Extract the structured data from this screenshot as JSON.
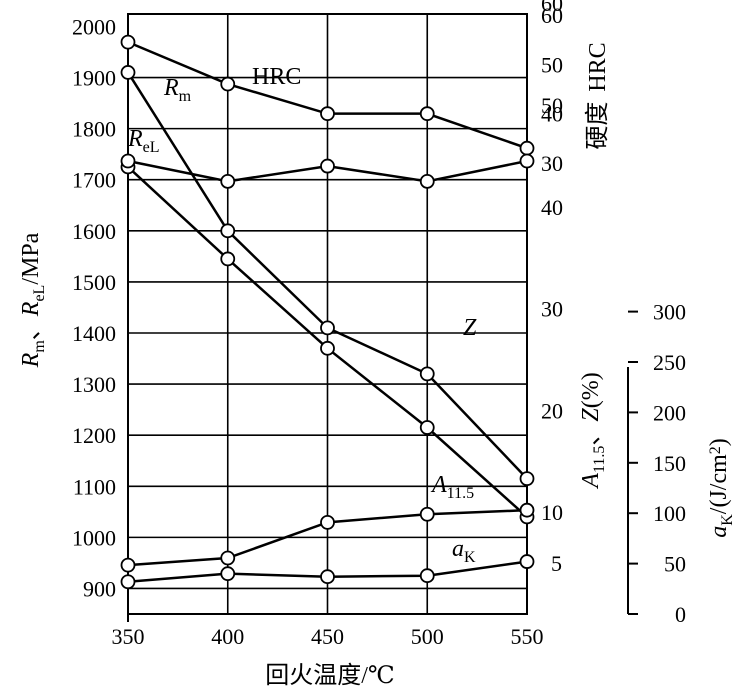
{
  "chart_data": {
    "type": "line",
    "x": [
      350,
      400,
      450,
      500,
      550
    ],
    "xticks": [
      "350",
      "400",
      "450",
      "500",
      "550"
    ],
    "xlabel": "回火温度/℃",
    "xlim": [
      350,
      550
    ],
    "grid": true,
    "axes": {
      "left": {
        "label_parts": [
          "R",
          "m",
          "、",
          "R",
          "eL",
          "/MPa"
        ],
        "range": [
          850,
          2000
        ],
        "ticks": [
          "900",
          "1000",
          "1100",
          "1200",
          "1300",
          "1400",
          "1500",
          "1600",
          "1700",
          "1800",
          "1900",
          "2000"
        ]
      },
      "hrc": {
        "label_parts": [
          "硬度",
          "HRC"
        ],
        "range": [
          25,
          60
        ],
        "ticks": [
          "30",
          "40",
          "50",
          "60"
        ]
      },
      "az": {
        "label_parts": [
          "A",
          "11.5",
          "、",
          "Z",
          "(%)"
        ],
        "range": [
          0,
          70
        ],
        "ticks": [
          "5",
          "10",
          "20",
          "30",
          "40",
          "50",
          "60"
        ]
      },
      "ak": {
        "label_parts": [
          "a",
          "K",
          "/(J/cm",
          "2",
          ")"
        ],
        "range": [
          0,
          300
        ],
        "ticks": [
          "0",
          "50",
          "100",
          "150",
          "200",
          "250",
          "300"
        ]
      }
    },
    "series": [
      {
        "name": "HRC",
        "axis": "hrc",
        "values": [
          54.5,
          46,
          40,
          40,
          33
        ],
        "label_parts": [
          "HRC"
        ]
      },
      {
        "name": "Rm",
        "axis": "left",
        "values": [
          1910,
          1600,
          1410,
          1320,
          1115
        ],
        "label_parts": [
          "R",
          "m"
        ]
      },
      {
        "name": "ReL",
        "axis": "left",
        "values": [
          1725,
          1545,
          1370,
          1215,
          1040
        ],
        "label_parts": [
          "R",
          "eL"
        ]
      },
      {
        "name": "Z",
        "axis": "az",
        "values": [
          44.5,
          42.5,
          44,
          42.5,
          44.5
        ],
        "label_parts": [
          "Z"
        ]
      },
      {
        "name": "A11.5",
        "axis": "az",
        "values": [
          4.8,
          5.5,
          9,
          9.8,
          10.2
        ],
        "label_parts": [
          "A",
          "11.5"
        ]
      },
      {
        "name": "aK",
        "axis": "ak",
        "values": [
          32,
          40,
          37,
          38,
          52
        ],
        "label_parts": [
          "a",
          "K"
        ]
      }
    ]
  }
}
